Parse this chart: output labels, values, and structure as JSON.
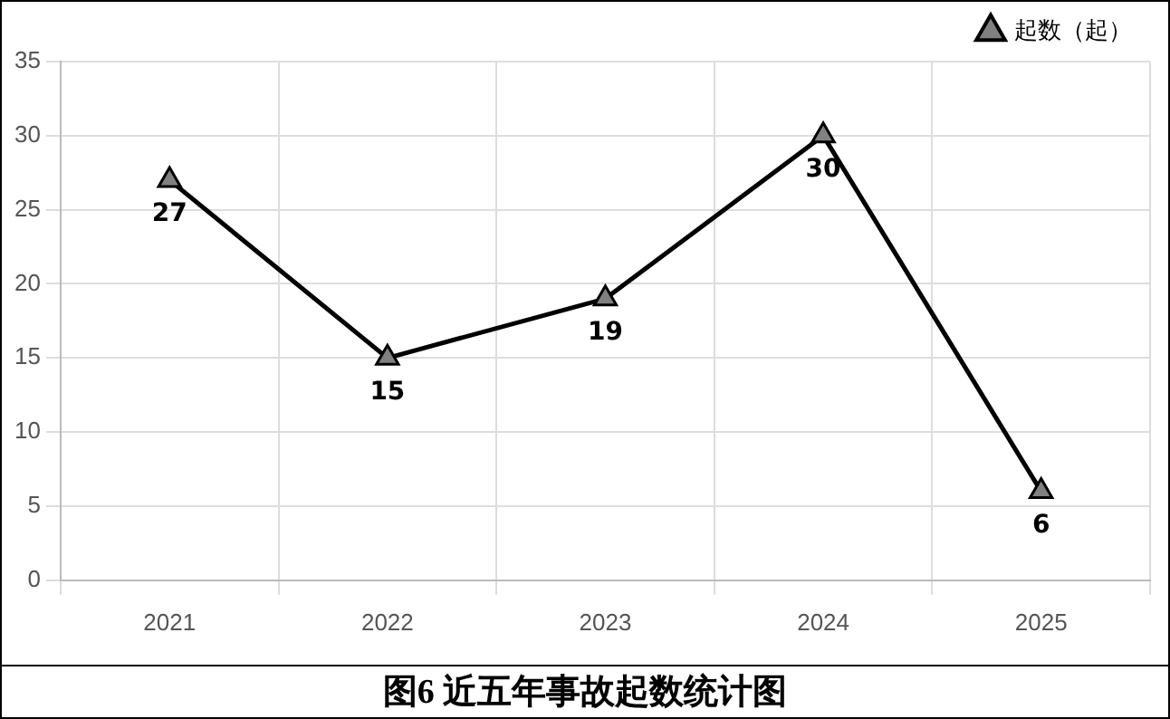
{
  "chart_data": {
    "type": "line",
    "title": "图6  近五年事故起数统计图",
    "categories": [
      "2021",
      "2022",
      "2023",
      "2024",
      "2025"
    ],
    "series": [
      {
        "name": "起数（起）",
        "color": "#000000",
        "values": [
          27,
          15,
          19,
          30,
          6
        ]
      }
    ],
    "ylim": [
      0,
      35
    ],
    "yticks": [
      0,
      5,
      10,
      15,
      20,
      25,
      30,
      35
    ],
    "grid": true,
    "legend": "top right",
    "marker": "triangle",
    "line_style": "solid",
    "data_labels": true
  }
}
